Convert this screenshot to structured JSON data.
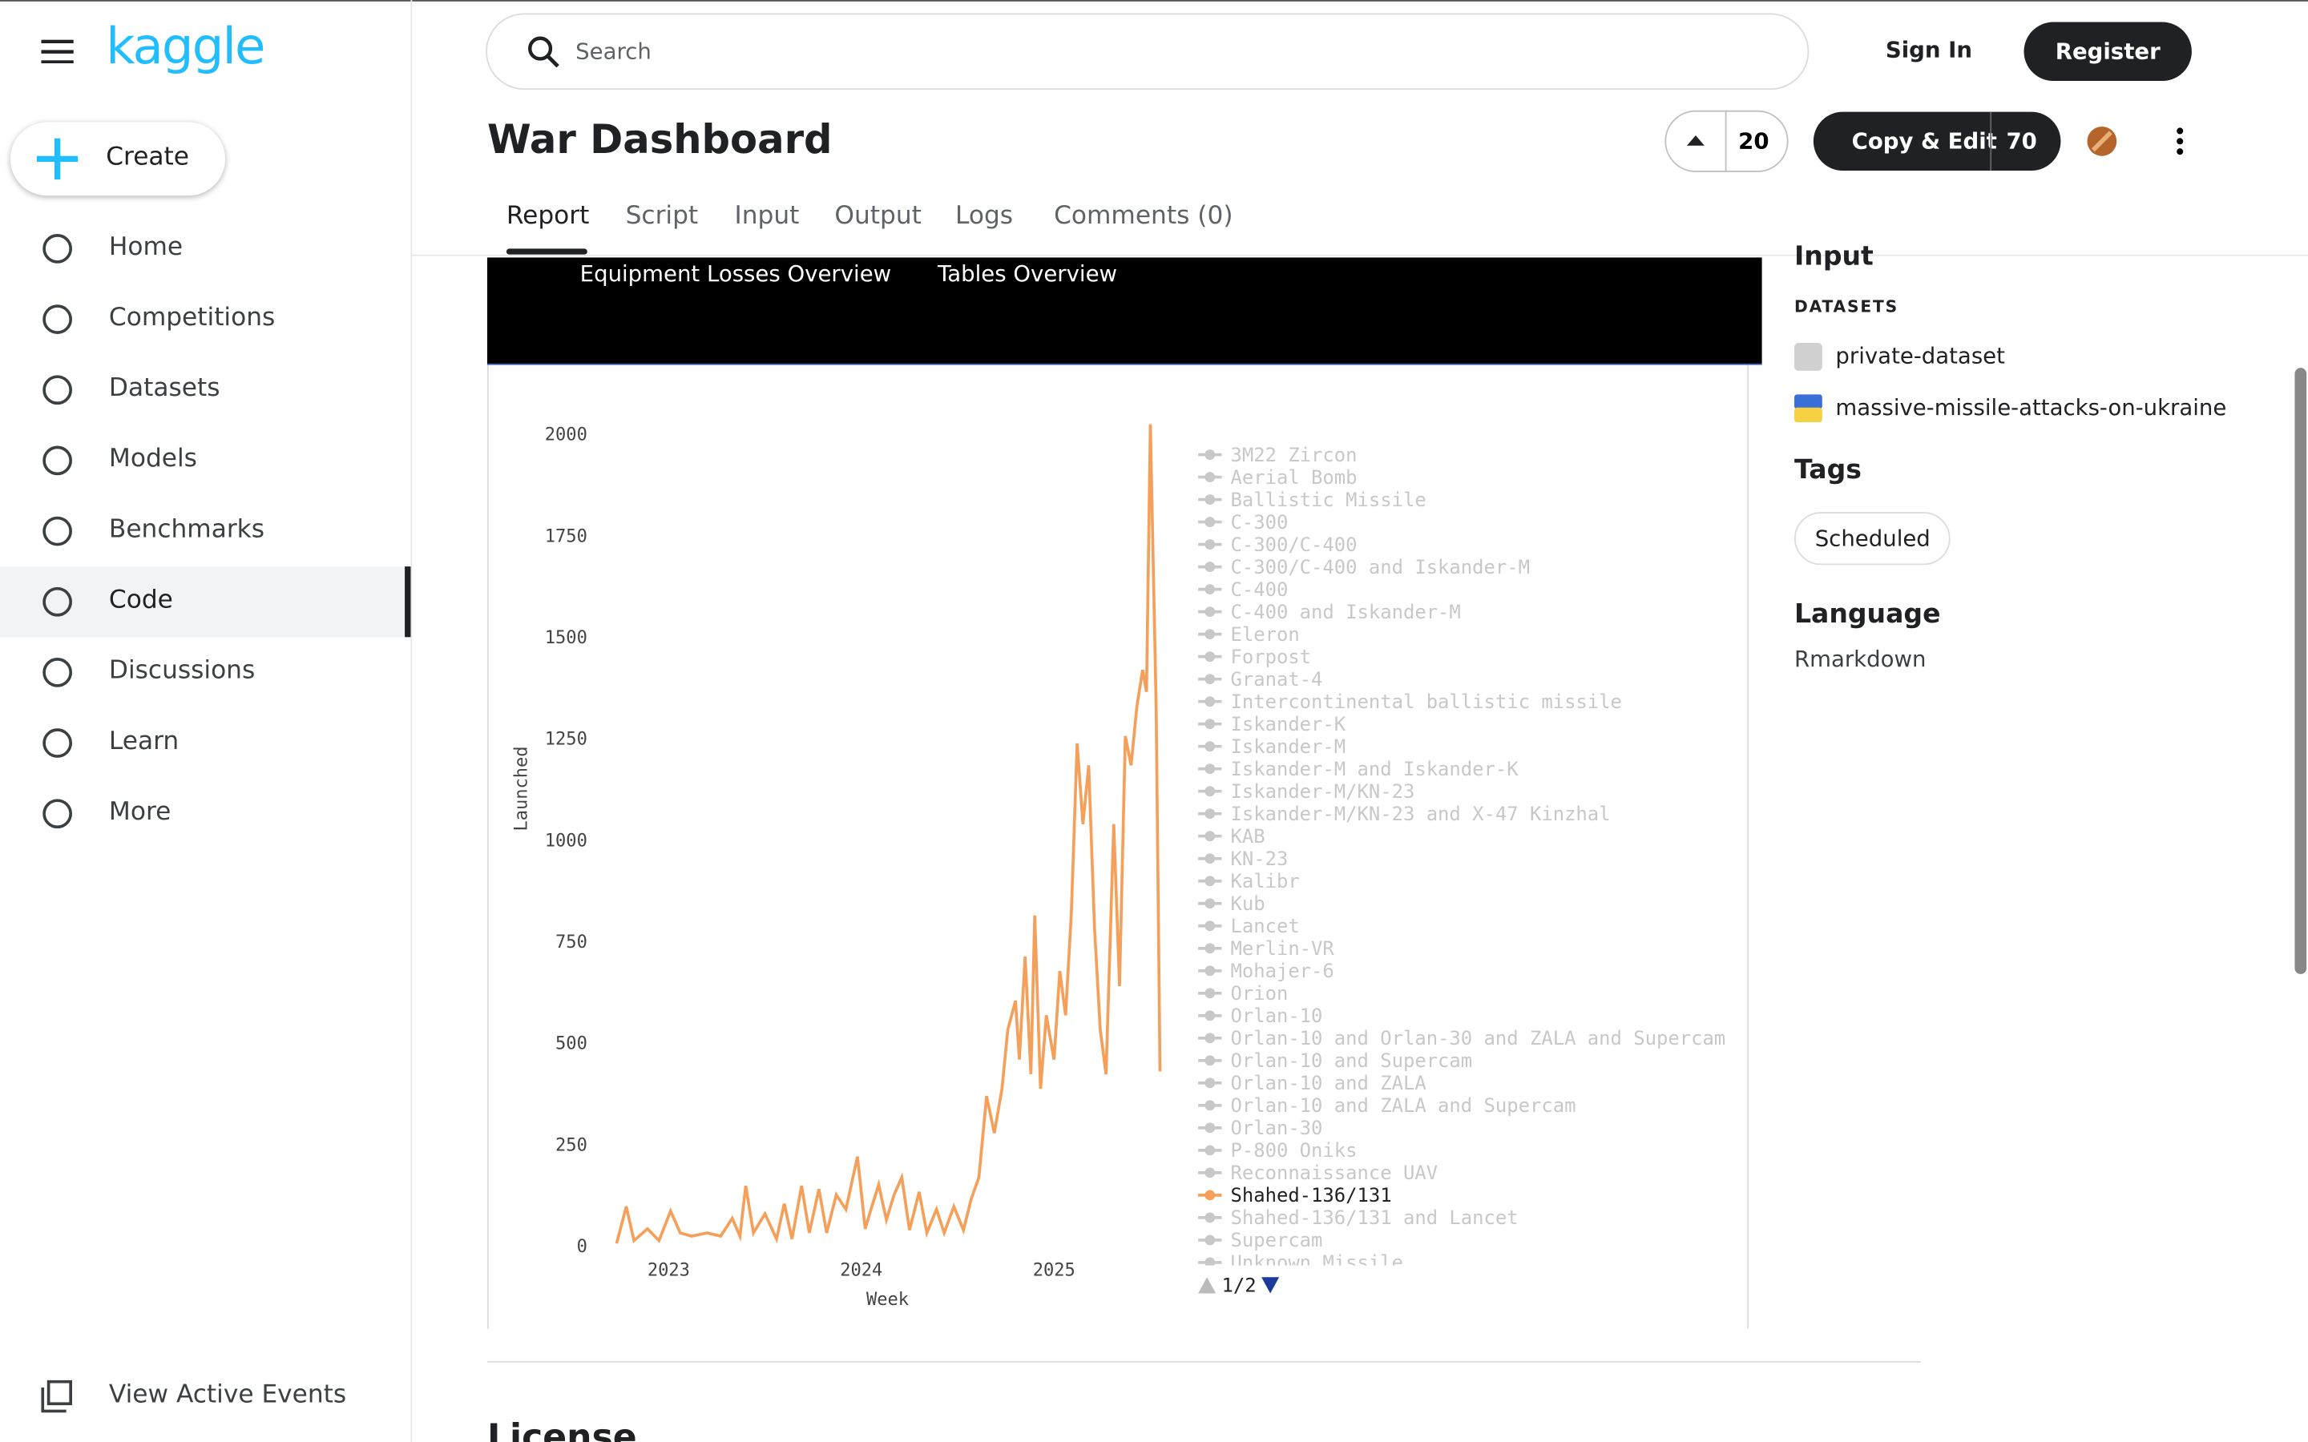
{
  "sidebar": {
    "logo": "kaggle",
    "create": "Create",
    "nav": [
      "Home",
      "Competitions",
      "Datasets",
      "Models",
      "Benchmarks",
      "Code",
      "Discussions",
      "Learn",
      "More"
    ],
    "active_index": 5,
    "events": "View Active Events"
  },
  "header": {
    "search": "Search",
    "sign_in": "Sign In",
    "register": "Register"
  },
  "notebook": {
    "title": "War Dashboard",
    "votes": 20,
    "copy_edit": "Copy & Edit",
    "copies": 70,
    "tabs": [
      "Report",
      "Script",
      "Input",
      "Output",
      "Logs",
      "Comments (0)"
    ],
    "active_tab": 0
  },
  "banner": {
    "tabs": [
      "Equipment Losses Overview",
      "Tables Overview"
    ]
  },
  "chart_data": {
    "type": "line",
    "x_label": "Week",
    "y_label": "Launched",
    "xlim": [
      2022.7,
      2025.58
    ],
    "xticks": [
      2023,
      2024,
      2025
    ],
    "ylim": [
      0,
      2030
    ],
    "yticks": [
      0,
      250,
      500,
      750,
      1000,
      1250,
      1500,
      1750,
      2000
    ],
    "series": [
      {
        "name": "3M22 Zircon"
      },
      {
        "name": "Aerial Bomb"
      },
      {
        "name": "Ballistic Missile"
      },
      {
        "name": "C-300"
      },
      {
        "name": "C-300/C-400"
      },
      {
        "name": "C-300/C-400 and Iskander-M"
      },
      {
        "name": "C-400"
      },
      {
        "name": "C-400 and Iskander-M"
      },
      {
        "name": "Eleron"
      },
      {
        "name": "Forpost"
      },
      {
        "name": "Granat-4"
      },
      {
        "name": "Intercontinental ballistic missile"
      },
      {
        "name": "Iskander-K"
      },
      {
        "name": "Iskander-M"
      },
      {
        "name": "Iskander-M and Iskander-K"
      },
      {
        "name": "Iskander-M/KN-23"
      },
      {
        "name": "Iskander-M/KN-23 and X-47 Kinzhal"
      },
      {
        "name": "KAB"
      },
      {
        "name": "KN-23"
      },
      {
        "name": "Kalibr"
      },
      {
        "name": "Kub"
      },
      {
        "name": "Lancet"
      },
      {
        "name": "Merlin-VR"
      },
      {
        "name": "Mohajer-6"
      },
      {
        "name": "Orion"
      },
      {
        "name": "Orlan-10"
      },
      {
        "name": "Orlan-10 and Orlan-30 and ZALA and Supercam"
      },
      {
        "name": "Orlan-10 and Supercam"
      },
      {
        "name": "Orlan-10 and ZALA"
      },
      {
        "name": "Orlan-10 and ZALA and Supercam"
      },
      {
        "name": "Orlan-30"
      },
      {
        "name": "P-800 Oniks"
      },
      {
        "name": "Reconnaissance UAV"
      },
      {
        "name": "Shahed-136/131",
        "color": "#f5a05a",
        "x": [
          2022.73,
          2022.78,
          2022.82,
          2022.89,
          2022.95,
          2023.01,
          2023.06,
          2023.12,
          2023.2,
          2023.27,
          2023.33,
          2023.37,
          2023.4,
          2023.44,
          2023.5,
          2023.56,
          2023.6,
          2023.64,
          2023.69,
          2023.73,
          2023.78,
          2023.82,
          2023.87,
          2023.92,
          2023.98,
          2024.02,
          2024.05,
          2024.09,
          2024.13,
          2024.17,
          2024.21,
          2024.25,
          2024.3,
          2024.34,
          2024.39,
          2024.43,
          2024.48,
          2024.53,
          2024.57,
          2024.61,
          2024.65,
          2024.69,
          2024.73,
          2024.76,
          2024.8,
          2024.82,
          2024.85,
          2024.88,
          2024.9,
          2024.93,
          2024.96,
          2025.0,
          2025.03,
          2025.06,
          2025.09,
          2025.12,
          2025.15,
          2025.18,
          2025.21,
          2025.24,
          2025.27,
          2025.31,
          2025.34,
          2025.37,
          2025.4,
          2025.43,
          2025.46,
          2025.48,
          2025.5,
          2025.53,
          2025.55
        ],
        "values": [
          7,
          98,
          14,
          43,
          14,
          87,
          33,
          25,
          33,
          25,
          69,
          25,
          149,
          33,
          80,
          18,
          105,
          18,
          149,
          33,
          141,
          33,
          127,
          91,
          221,
          43,
          91,
          152,
          65,
          127,
          170,
          40,
          134,
          33,
          91,
          33,
          98,
          40,
          116,
          170,
          370,
          279,
          388,
          533,
          605,
          460,
          714,
          424,
          815,
          388,
          569,
          460,
          678,
          569,
          822,
          1239,
          1040,
          1185,
          786,
          533,
          424,
          1040,
          641,
          1257,
          1185,
          1330,
          1420,
          1366,
          2025,
          1330,
          431
        ]
      },
      {
        "name": "Shahed-136/131 and Lancet"
      },
      {
        "name": "Supercam"
      },
      {
        "name": "Unknown Missile"
      }
    ],
    "legend_page": "1/2"
  },
  "right_panel": {
    "input_heading": "Input",
    "datasets_label": "DATASETS",
    "datasets": [
      "private-dataset",
      "massive-missile-attacks-on-ukraine"
    ],
    "tags_heading": "Tags",
    "tags": [
      "Scheduled"
    ],
    "language_heading": "Language",
    "language": "Rmarkdown"
  },
  "footer": {
    "license_heading": "License"
  }
}
